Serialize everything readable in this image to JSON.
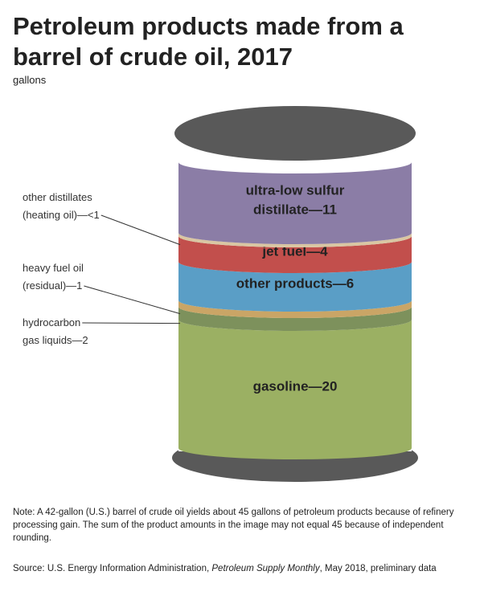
{
  "chart_data": {
    "type": "barrel",
    "title": "Petroleum products made from a barrel of crude oil, 2017",
    "subtitle": "gallons",
    "categories": [
      "gasoline",
      "hydrocarbon gas liquids",
      "heavy fuel oil",
      "other products",
      "jet fuel",
      "other distillates",
      "ultra-low sulfur distillate"
    ],
    "values": [
      20,
      2,
      1,
      6,
      4,
      0.5,
      11
    ],
    "value_labels": [
      "gasoline—20",
      "hydrocarbon\ngas liquids—2",
      "heavy fuel oil\n(residual)—1",
      "other products—6",
      "jet fuel—4",
      "other distillates\n(heating oil)—<1",
      "ultra-low sulfur\ndistillate—11"
    ],
    "colors": [
      "#9bb063",
      "#7d915c",
      "#caa566",
      "#5a9ec6",
      "#c24f4c",
      "#d9c6a3",
      "#8b7da6"
    ],
    "note": "Note: A 42-gallon (U.S.) barrel of crude oil yields about 45 gallons of petroleum products because of refinery processing gain. The sum of the product amounts in the image may not equal 45 because of independent rounding.",
    "source": {
      "prefix": "Source: U.S. Energy Information Administration,",
      "publication": "Petroleum Supply Monthly",
      "suffix": ", May 2018, preliminary data"
    }
  }
}
